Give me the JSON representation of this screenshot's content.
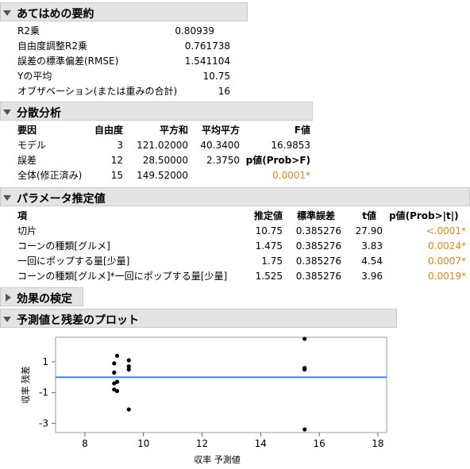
{
  "summary": {
    "title": "あてはめの要約",
    "rows": [
      {
        "label": "R2乗",
        "value": "0.80939"
      },
      {
        "label": "自由度調整R2乗",
        "value": "0.761738"
      },
      {
        "label": "誤差の標準偏差(RMSE)",
        "value": "1.541104"
      },
      {
        "label": "Yの平均",
        "value": "10.75"
      },
      {
        "label": "オブザベーション(または重みの合計)",
        "value": "16"
      }
    ]
  },
  "anova": {
    "title": "分散分析",
    "headers": [
      "要因",
      "自由度",
      "平方和",
      "平均平方",
      "F値"
    ],
    "rows": [
      {
        "source": "モデル",
        "df": "3",
        "ss": "121.02000",
        "ms": "40.3400",
        "f": "16.9853"
      },
      {
        "source": "誤差",
        "df": "12",
        "ss": "28.50000",
        "ms": "2.3750",
        "f": "p値(Prob>F)"
      },
      {
        "source": "全体(修正済み)",
        "df": "15",
        "ss": "149.52000",
        "ms": "",
        "f": "0.0001*"
      }
    ]
  },
  "params": {
    "title": "パラメータ推定値",
    "headers": [
      "項",
      "推定値",
      "標準誤差",
      "t値",
      "p値(Prob>|t|)"
    ],
    "rows": [
      {
        "term": "切片",
        "est": "10.75",
        "se": "0.385276",
        "t": "27.90",
        "p": "<.0001*"
      },
      {
        "term": "コーンの種類[グルメ]",
        "est": "1.475",
        "se": "0.385276",
        "t": "3.83",
        "p": "0.0024*"
      },
      {
        "term": "一回にポップする量[少量]",
        "est": "1.75",
        "se": "0.385276",
        "t": "4.54",
        "p": "0.0007*"
      },
      {
        "term": "コーンの種類[グルメ]*一回にポップする量[少量]",
        "est": "1.525",
        "se": "0.385276",
        "t": "3.96",
        "p": "0.0019*"
      }
    ]
  },
  "effects": {
    "title": "効果の検定"
  },
  "plot_section": {
    "title": "予測値と残差のプロット"
  },
  "chart_data": {
    "type": "scatter",
    "xlabel": "収率 予測値",
    "ylabel": "収率 残差",
    "xlim": [
      7,
      18.3
    ],
    "ylim": [
      -3.6,
      2.6
    ],
    "xticks": [
      "8",
      "10",
      "12",
      "14",
      "16",
      "18"
    ],
    "yticks": [
      "1",
      "-1",
      "-3"
    ],
    "reference_line_y": 0,
    "points": [
      {
        "x": 9.0,
        "y": 0.9
      },
      {
        "x": 9.0,
        "y": 0.3
      },
      {
        "x": 9.0,
        "y": -0.4
      },
      {
        "x": 9.0,
        "y": -0.8
      },
      {
        "x": 9.1,
        "y": 1.4
      },
      {
        "x": 9.1,
        "y": -0.3
      },
      {
        "x": 9.1,
        "y": -0.9
      },
      {
        "x": 9.5,
        "y": 1.1
      },
      {
        "x": 9.5,
        "y": 0.7
      },
      {
        "x": 9.5,
        "y": 0.5
      },
      {
        "x": 9.5,
        "y": -2.1
      },
      {
        "x": 15.5,
        "y": 2.5
      },
      {
        "x": 15.5,
        "y": 0.6
      },
      {
        "x": 15.5,
        "y": 0.5
      },
      {
        "x": 15.5,
        "y": -3.4
      }
    ],
    "point_color": "#000000",
    "line_color": "#4a7fe0"
  }
}
